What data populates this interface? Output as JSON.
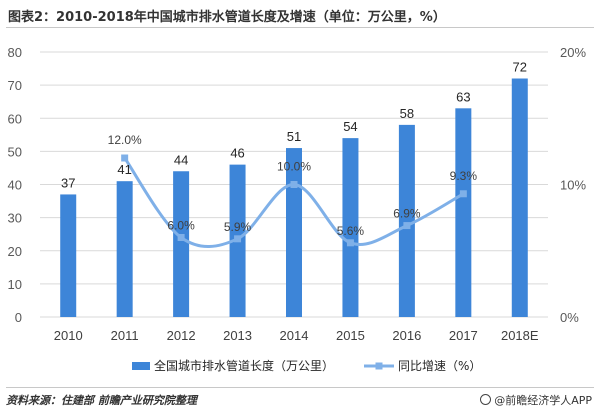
{
  "title": "图表2：2010-2018年中国城市排水管道长度及增速（单位：万公里，%）",
  "source": "资料来源：住建部 前瞻产业研究院整理",
  "brand": "@前瞻经济学人APP",
  "colors": {
    "bar": "#3d85d8",
    "line": "#7fb0e8",
    "grid": "#d9d9d9",
    "axis_text": "#595959"
  },
  "chart_data": {
    "type": "bar",
    "categories": [
      "2010",
      "2011",
      "2012",
      "2013",
      "2014",
      "2015",
      "2016",
      "2017",
      "2018E"
    ],
    "series": [
      {
        "name": "全国城市排水管道长度（万公里）",
        "type": "bar",
        "axis": "left",
        "values": [
          37,
          41,
          44,
          46,
          51,
          54,
          58,
          63,
          72
        ],
        "labels": [
          "37",
          "41",
          "44",
          "46",
          "51",
          "54",
          "58",
          "63",
          "72"
        ]
      },
      {
        "name": "同比增速（%）",
        "type": "line",
        "axis": "right",
        "values": [
          null,
          12.0,
          6.0,
          5.9,
          10.0,
          5.6,
          6.9,
          9.3,
          null
        ],
        "labels": [
          "",
          "12.0%",
          "6.0%",
          "5.9%",
          "10.0%",
          "5.6%",
          "6.9%",
          "9.3%",
          ""
        ]
      }
    ],
    "y_left": {
      "range": [
        0,
        80
      ],
      "ticks": [
        "0",
        "10",
        "20",
        "30",
        "40",
        "50",
        "60",
        "70",
        "80"
      ]
    },
    "y_right": {
      "range": [
        0,
        20
      ],
      "ticks": [
        "0%",
        "10%",
        "20%"
      ]
    },
    "grid": true,
    "legend": "bottom"
  }
}
